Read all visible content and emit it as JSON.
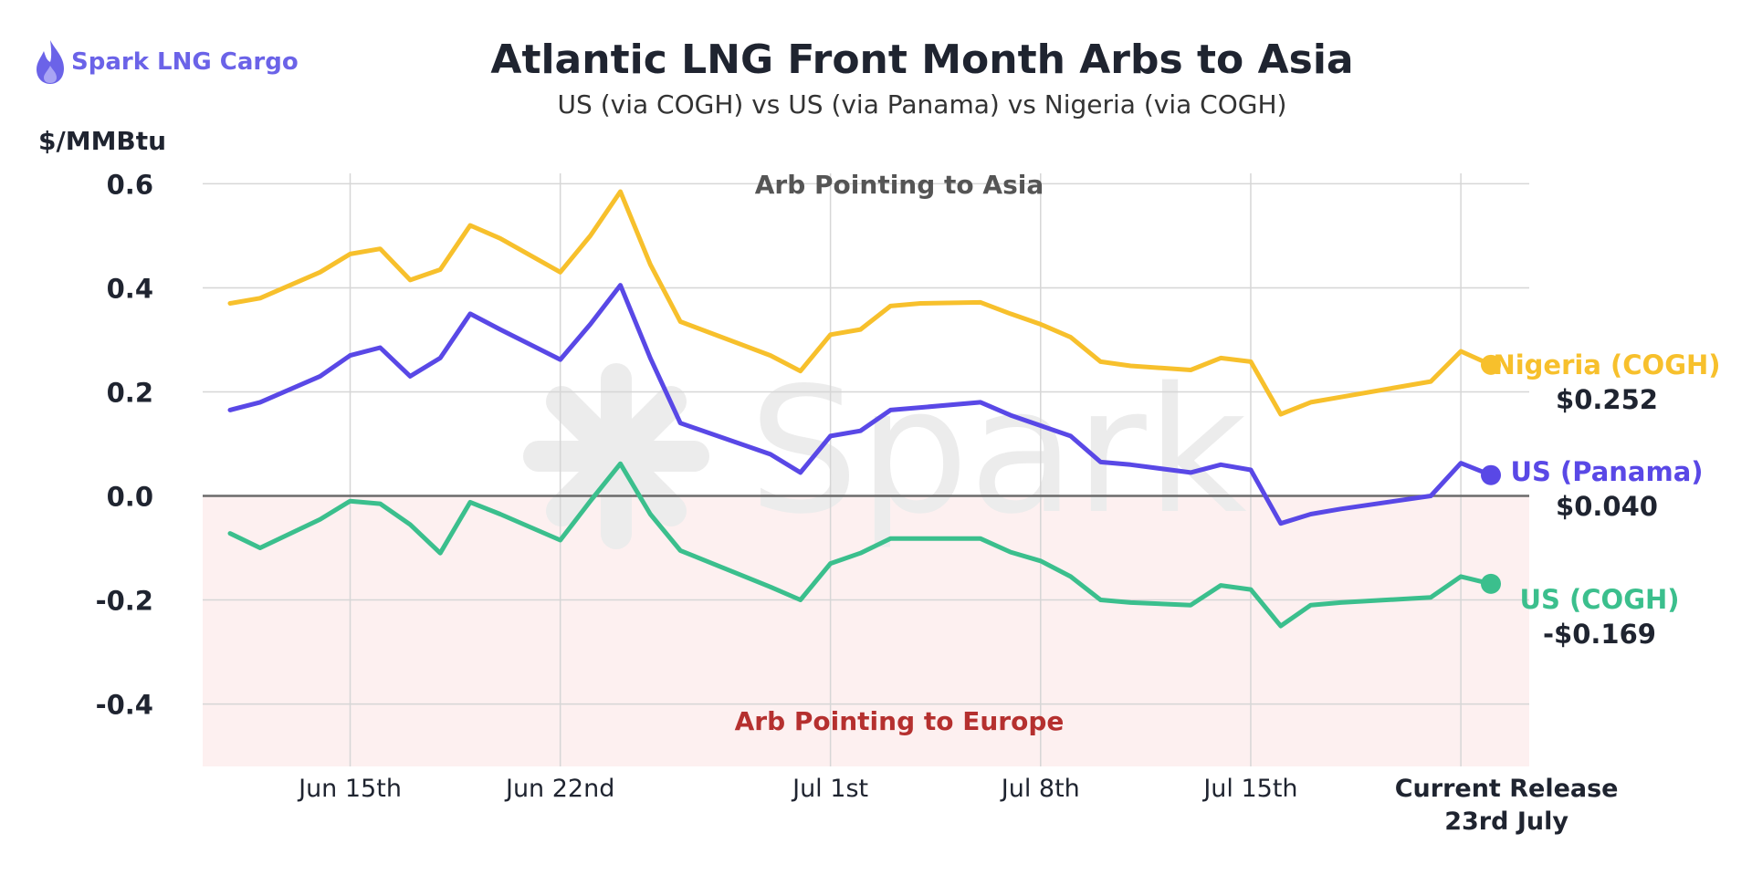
{
  "brand": {
    "name": "Spark LNG Cargo",
    "watermark": "Spark"
  },
  "header": {
    "title": "Atlantic LNG Front Month Arbs to Asia",
    "subtitle": "US (via COGH) vs US (via Panama) vs Nigeria (via COGH)"
  },
  "colors": {
    "nigeria": "#f7c02c",
    "panama": "#5948e6",
    "cogh": "#3bbf8d",
    "negative_zone": "#fdf0f0",
    "asia_label": "#555555",
    "europe_label": "#b5302f",
    "grid": "#d6d6d6",
    "zero_line": "#6b6b6b"
  },
  "chart_data": {
    "type": "line",
    "ylabel": "$/MMBtu",
    "ylim": [
      -0.52,
      0.62
    ],
    "y_ticks": [
      "0.6",
      "0.4",
      "0.2",
      "0.0",
      "-0.2",
      "-0.4"
    ],
    "x_ticks": [
      "Jun 15th",
      "Jun 22nd",
      "Jul 1st",
      "Jul 8th",
      "Jul 15th"
    ],
    "x_tick_last": [
      "Current Release",
      "23rd July"
    ],
    "x_dates": [
      "Jun 11",
      "Jun 12",
      "Jun 14",
      "Jun 15",
      "Jun 16",
      "Jun 17",
      "Jun 18",
      "Jun 19",
      "Jun 20",
      "Jun 22",
      "Jun 23",
      "Jun 24",
      "Jun 25",
      "Jun 26",
      "Jun 29",
      "Jun 30",
      "Jul 1",
      "Jul 2",
      "Jul 3",
      "Jul 4",
      "Jul 6",
      "Jul 7",
      "Jul 8",
      "Jul 9",
      "Jul 10",
      "Jul 11",
      "Jul 13",
      "Jul 14",
      "Jul 15",
      "Jul 16",
      "Jul 17",
      "Jul 18",
      "Jul 21",
      "Jul 22",
      "Jul 23"
    ],
    "annotations": {
      "above": "Arb Pointing to Asia",
      "below": "Arb Pointing to Europe"
    },
    "series": [
      {
        "name": "Nigeria (COGH)",
        "key": "nigeria",
        "end_value": "$0.252",
        "values": [
          0.37,
          0.38,
          0.43,
          0.465,
          0.475,
          0.415,
          0.435,
          0.52,
          0.495,
          0.43,
          0.5,
          0.585,
          0.445,
          0.335,
          0.27,
          0.24,
          0.31,
          0.32,
          0.365,
          0.37,
          0.372,
          0.35,
          0.33,
          0.305,
          0.258,
          0.25,
          0.242,
          0.265,
          0.258,
          0.157,
          0.18,
          0.19,
          0.22,
          0.278,
          0.252
        ]
      },
      {
        "name": "US (Panama)",
        "key": "panama",
        "end_value": "$0.040",
        "values": [
          0.165,
          0.18,
          0.23,
          0.27,
          0.285,
          0.23,
          0.265,
          0.35,
          0.32,
          0.262,
          0.33,
          0.405,
          0.265,
          0.14,
          0.08,
          0.045,
          0.115,
          0.125,
          0.165,
          0.17,
          0.18,
          0.155,
          0.135,
          0.115,
          0.065,
          0.06,
          0.045,
          0.06,
          0.05,
          -0.053,
          -0.035,
          -0.025,
          0.0,
          0.063,
          0.04
        ]
      },
      {
        "name": "US (COGH)",
        "key": "cogh",
        "end_value": "-$0.169",
        "values": [
          -0.072,
          -0.1,
          -0.045,
          -0.01,
          -0.015,
          -0.055,
          -0.11,
          -0.012,
          -0.035,
          -0.085,
          -0.01,
          0.062,
          -0.035,
          -0.105,
          -0.175,
          -0.2,
          -0.13,
          -0.11,
          -0.082,
          -0.082,
          -0.082,
          -0.108,
          -0.125,
          -0.155,
          -0.2,
          -0.205,
          -0.21,
          -0.172,
          -0.18,
          -0.25,
          -0.21,
          -0.205,
          -0.195,
          -0.155,
          -0.169
        ]
      }
    ]
  }
}
